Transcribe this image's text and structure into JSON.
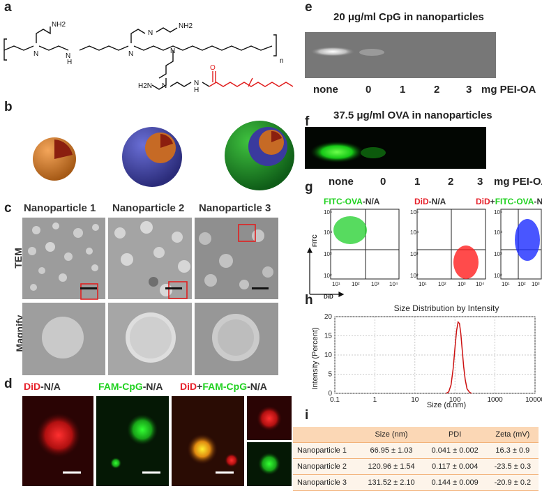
{
  "panels": {
    "a": "a",
    "b": "b",
    "c": "c",
    "d": "d",
    "e": "e",
    "f": "f",
    "g": "g",
    "h": "h",
    "i": "i"
  },
  "structure": {
    "n_label": "n",
    "nh2": "NH2",
    "nh": "N",
    "h": "H",
    "n": "N",
    "h2n": "H2N",
    "o": "O"
  },
  "panel_c": {
    "cols": [
      "Nanoparticle 1",
      "Nanoparticle 2",
      "Nanoparticle 3"
    ],
    "rows": [
      "TEM",
      "Magnify"
    ]
  },
  "panel_d": {
    "titles": [
      {
        "a": "DiD",
        "b": "-N/A"
      },
      {
        "a": "FAM-CpG",
        "b": "-N/A"
      },
      {
        "a": "DiD",
        "b": "+",
        "c": "FAM-CpG",
        "d": "-N/A"
      }
    ]
  },
  "panel_e": {
    "title": "20 μg/ml CpG in nanoparticles",
    "lanes": [
      "none",
      "0",
      "1",
      "2",
      "3"
    ],
    "unit": "mg PEI-OA"
  },
  "panel_f": {
    "title": "37.5 μg/ml OVA in nanoparticles",
    "lanes": [
      "none",
      "0",
      "1",
      "2",
      "3"
    ],
    "unit": "mg PEI-OA"
  },
  "panel_g": {
    "titles": [
      {
        "a": "FITC-OVA",
        "b": "-N/A"
      },
      {
        "a": "DiD",
        "b": "-N/A"
      },
      {
        "a": "DiD",
        "b": "+",
        "c": "FITC-OVA",
        "d": "-N/A"
      }
    ],
    "ylab": "FITC",
    "xlab": "DiD",
    "yticks": [
      "10⁵",
      "10⁴",
      "10³",
      "10²"
    ],
    "xticks": [
      "10¹",
      "10²",
      "10³",
      "10⁴"
    ]
  },
  "chart_data": {
    "type": "line",
    "title": "Size Distribution by Intensity",
    "xlabel": "Size (d.nm)",
    "ylabel": "Intensity (Percent)",
    "xscale": "log",
    "xlim": [
      0.1,
      10000
    ],
    "ylim": [
      0,
      20
    ],
    "xticks": [
      "0.1",
      "1",
      "10",
      "100",
      "1000",
      "10000"
    ],
    "yticks": [
      "0",
      "5",
      "10",
      "15",
      "20"
    ],
    "grid": true,
    "series": [
      {
        "x": [
          60,
          70,
          80,
          90,
          100,
          110,
          120,
          130,
          140,
          150,
          165,
          180,
          200,
          230,
          260
        ],
        "y": [
          0,
          0.4,
          2.2,
          6.4,
          11.8,
          16.4,
          18.6,
          18.2,
          15.6,
          12.0,
          7.0,
          3.6,
          1.2,
          0.3,
          0
        ],
        "color": "#cc1111"
      }
    ]
  },
  "table": {
    "headers": [
      "",
      "Size (nm)",
      "PDI",
      "Zeta (mV)"
    ],
    "rows": [
      [
        "Nanoparticle 1",
        "66.95 ± 1.03",
        "0.041 ± 0.002",
        "16.3 ± 0.9"
      ],
      [
        "Nanoparticle 2",
        "120.96 ± 1.54",
        "0.117 ± 0.004",
        "-23.5 ± 0.3"
      ],
      [
        "Nanoparticle 3",
        "131.52 ± 2.10",
        "0.144 ± 0.009",
        "-20.9 ± 0.2"
      ]
    ]
  }
}
